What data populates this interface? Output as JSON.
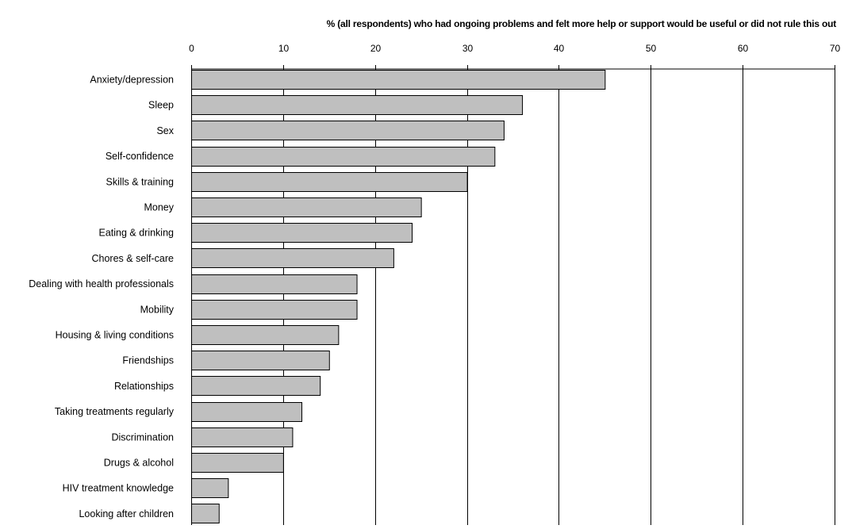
{
  "chart_data": {
    "type": "bar",
    "orientation": "horizontal",
    "title": "",
    "xlabel": "% (all respondents) who had ongoing problems and felt more help or support would be useful or did not rule this out",
    "ylabel": "",
    "xlim": [
      0,
      70
    ],
    "xticks": [
      0,
      10,
      20,
      30,
      40,
      50,
      60,
      70
    ],
    "grid": true,
    "legend": "none",
    "categories": [
      "Anxiety/depression",
      "Sleep",
      "Sex",
      "Self-confidence",
      "Skills & training",
      "Money",
      "Eating & drinking",
      "Chores & self-care",
      "Dealing with health professionals",
      "Mobility",
      "Housing & living conditions",
      "Friendships",
      "Relationships",
      "Taking treatments regularly",
      "Discrimination",
      "Drugs & alcohol",
      "HIV treatment knowledge",
      "Looking after children"
    ],
    "values": [
      45,
      36,
      34,
      33,
      30,
      25,
      24,
      22,
      18,
      18,
      16,
      15,
      14,
      12,
      11,
      10,
      4,
      3
    ],
    "colors": {
      "bar_fill": "#bfbfbf",
      "bar_stroke": "#000000",
      "grid": "#000000"
    }
  }
}
